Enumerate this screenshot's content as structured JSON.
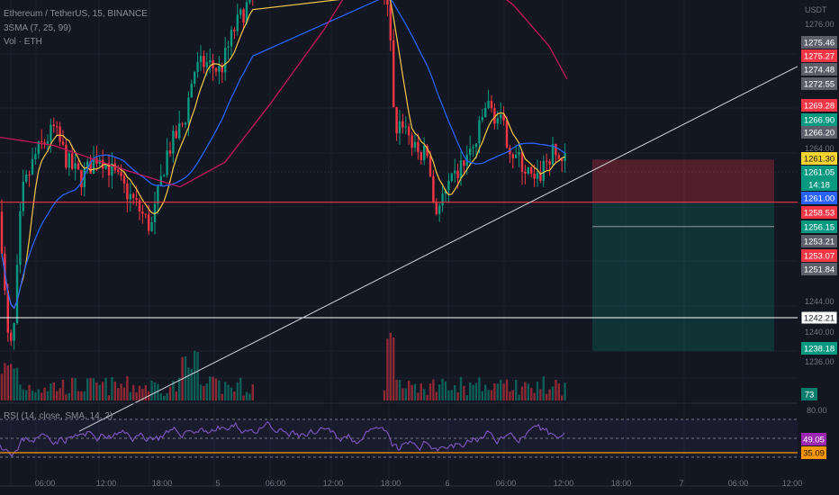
{
  "legend": {
    "symbol": "Ethereum / TetherUS, 15, BINANCE",
    "sma": "3SMA (7, 25, 99)",
    "vol": "Vol · ETH"
  },
  "rsi_legend": "RSI (14, close, SMA, 14, 2)",
  "currency": "USDT",
  "price_axis_labels": [
    "1276.00",
    "1264.00",
    "1244.00",
    "1240.00",
    "1236.00"
  ],
  "price_tags": [
    {
      "value": "1275.46",
      "color": "#5d606b"
    },
    {
      "value": "1275.27",
      "color": "#f23645"
    },
    {
      "value": "1274.48",
      "color": "#5d606b"
    },
    {
      "value": "1272.55",
      "color": "#5d606b"
    },
    {
      "value": "1269.28",
      "color": "#f23645"
    },
    {
      "value": "1266.90",
      "color": "#089981"
    },
    {
      "value": "1266.20",
      "color": "#5d606b"
    },
    {
      "value": "1261.30",
      "color": "#f7d32f"
    },
    {
      "value": "1261.05",
      "color": "#089981"
    },
    {
      "value": "14:18",
      "color": "#089981"
    },
    {
      "value": "1261.00",
      "color": "#2962ff"
    },
    {
      "value": "1258.53",
      "color": "#f23645"
    },
    {
      "value": "1256.15",
      "color": "#089981"
    },
    {
      "value": "1253.21",
      "color": "#5d606b"
    },
    {
      "value": "1253.07",
      "color": "#f23645"
    },
    {
      "value": "1251.84",
      "color": "#5d606b"
    },
    {
      "value": "1242.21",
      "color": "#ffffff"
    },
    {
      "value": "1238.18",
      "color": "#089981"
    }
  ],
  "volume_tag": "73",
  "rsi_axis_label": "80.00",
  "rsi_tags": [
    {
      "value": "49.05",
      "color": "#9c27b0"
    },
    {
      "value": "35.09",
      "color": "#ff9800"
    }
  ],
  "time_labels": [
    "06:00",
    "12:00",
    "18:00",
    "5",
    "06:00",
    "12:00",
    "18:00",
    "6",
    "06:00",
    "12:00",
    "18:00",
    "7",
    "06:00",
    "12:00"
  ],
  "chart_data": {
    "type": "line",
    "ylim": [
      1232,
      1281
    ],
    "horizontal_lines": [
      1256.15,
      1242.21
    ],
    "position_box": {
      "entry": 1256.15,
      "stop": 1261.3,
      "target": 1238.18
    },
    "trendline": {
      "from": 1228.5,
      "to": 1272.55
    },
    "sma_series": [
      "SMA 7",
      "SMA 25",
      "SMA 99"
    ],
    "rsi": {
      "levels": [
        70,
        50,
        30
      ],
      "ylim": [
        20,
        80
      ],
      "last": 49.05,
      "sma_last": 35.09
    }
  },
  "colors": {
    "up": "#089981",
    "down": "#f23645",
    "sma7": "#f7c948",
    "sma25": "#2962ff",
    "sma99": "#c2185b",
    "rsi": "#7e57c2"
  }
}
